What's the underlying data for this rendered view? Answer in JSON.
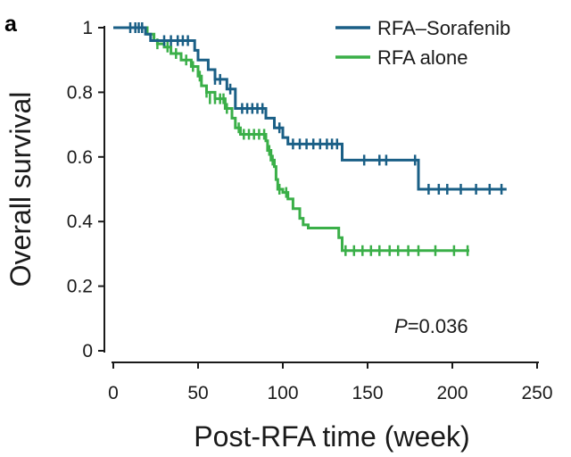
{
  "panel_label": "a",
  "colors": {
    "sorafenib": "#1a5f86",
    "alone": "#3aaf48",
    "axis": "#1a1a1a"
  },
  "annotation": {
    "p_label": "P",
    "p_value": "=0.036"
  },
  "chart_data": {
    "type": "line",
    "title": "",
    "xlabel": "Post-RFA time (week)",
    "ylabel": "Overall survival",
    "xlim": [
      0,
      250
    ],
    "ylim": [
      0,
      1
    ],
    "xticks": [
      0,
      50,
      100,
      150,
      200,
      250
    ],
    "yticks": [
      0,
      0.2,
      0.4,
      0.6,
      0.8,
      1
    ],
    "xtick_labels": [
      "0",
      "50",
      "100",
      "150",
      "200",
      "250"
    ],
    "ytick_labels": [
      "0",
      "0.2",
      "0.4",
      "0.6",
      "0.8",
      "1"
    ],
    "legend": {
      "position": "top-right"
    },
    "series": [
      {
        "name": "RFA–Sorafenib",
        "color": "#1a5f86",
        "steps": [
          [
            0,
            1.0
          ],
          [
            19,
            0.98
          ],
          [
            22,
            0.96
          ],
          [
            48,
            0.93
          ],
          [
            50,
            0.9
          ],
          [
            56,
            0.87
          ],
          [
            60,
            0.84
          ],
          [
            67,
            0.81
          ],
          [
            72,
            0.75
          ],
          [
            90,
            0.72
          ],
          [
            95,
            0.69
          ],
          [
            100,
            0.66
          ],
          [
            103,
            0.64
          ],
          [
            135,
            0.59
          ],
          [
            180,
            0.5
          ],
          [
            232,
            0.5
          ]
        ],
        "censored": [
          [
            10,
            1.0
          ],
          [
            13,
            1.0
          ],
          [
            15,
            1.0
          ],
          [
            17,
            1.0
          ],
          [
            30,
            0.96
          ],
          [
            34,
            0.96
          ],
          [
            38,
            0.96
          ],
          [
            41,
            0.96
          ],
          [
            44,
            0.96
          ],
          [
            60,
            0.84
          ],
          [
            63,
            0.84
          ],
          [
            69,
            0.81
          ],
          [
            76,
            0.75
          ],
          [
            79,
            0.75
          ],
          [
            82,
            0.75
          ],
          [
            85,
            0.75
          ],
          [
            88,
            0.75
          ],
          [
            98,
            0.69
          ],
          [
            106,
            0.64
          ],
          [
            110,
            0.64
          ],
          [
            114,
            0.64
          ],
          [
            118,
            0.64
          ],
          [
            122,
            0.64
          ],
          [
            126,
            0.64
          ],
          [
            129,
            0.64
          ],
          [
            132,
            0.64
          ],
          [
            148,
            0.59
          ],
          [
            157,
            0.59
          ],
          [
            161,
            0.59
          ],
          [
            178,
            0.59
          ],
          [
            186,
            0.5
          ],
          [
            192,
            0.5
          ],
          [
            197,
            0.5
          ],
          [
            205,
            0.5
          ],
          [
            214,
            0.5
          ],
          [
            222,
            0.5
          ],
          [
            229,
            0.5
          ]
        ]
      },
      {
        "name": "RFA alone",
        "color": "#3aaf48",
        "steps": [
          [
            0,
            1.0
          ],
          [
            20,
            0.98
          ],
          [
            24,
            0.96
          ],
          [
            26,
            0.95
          ],
          [
            30,
            0.94
          ],
          [
            34,
            0.92
          ],
          [
            40,
            0.9
          ],
          [
            46,
            0.88
          ],
          [
            50,
            0.85
          ],
          [
            52,
            0.82
          ],
          [
            55,
            0.8
          ],
          [
            60,
            0.78
          ],
          [
            66,
            0.75
          ],
          [
            70,
            0.72
          ],
          [
            72,
            0.69
          ],
          [
            75,
            0.67
          ],
          [
            90,
            0.65
          ],
          [
            91,
            0.62
          ],
          [
            93,
            0.59
          ],
          [
            95,
            0.57
          ],
          [
            96,
            0.53
          ],
          [
            97,
            0.5
          ],
          [
            100,
            0.49
          ],
          [
            103,
            0.47
          ],
          [
            106,
            0.44
          ],
          [
            110,
            0.41
          ],
          [
            112,
            0.39
          ],
          [
            115,
            0.38
          ],
          [
            133,
            0.35
          ],
          [
            135,
            0.31
          ],
          [
            210,
            0.31
          ]
        ],
        "censored": [
          [
            26,
            0.95
          ],
          [
            32,
            0.94
          ],
          [
            37,
            0.92
          ],
          [
            43,
            0.9
          ],
          [
            47,
            0.88
          ],
          [
            51,
            0.85
          ],
          [
            55,
            0.8
          ],
          [
            57,
            0.78
          ],
          [
            60,
            0.78
          ],
          [
            63,
            0.78
          ],
          [
            65,
            0.78
          ],
          [
            67,
            0.75
          ],
          [
            74,
            0.69
          ],
          [
            77,
            0.67
          ],
          [
            80,
            0.67
          ],
          [
            83,
            0.67
          ],
          [
            86,
            0.67
          ],
          [
            89,
            0.67
          ],
          [
            92,
            0.62
          ],
          [
            94,
            0.59
          ],
          [
            98,
            0.5
          ],
          [
            102,
            0.49
          ],
          [
            137,
            0.31
          ],
          [
            142,
            0.31
          ],
          [
            147,
            0.31
          ],
          [
            152,
            0.31
          ],
          [
            157,
            0.31
          ],
          [
            163,
            0.31
          ],
          [
            168,
            0.31
          ],
          [
            174,
            0.31
          ],
          [
            180,
            0.31
          ],
          [
            190,
            0.31
          ],
          [
            201,
            0.31
          ],
          [
            209,
            0.31
          ]
        ]
      }
    ]
  }
}
